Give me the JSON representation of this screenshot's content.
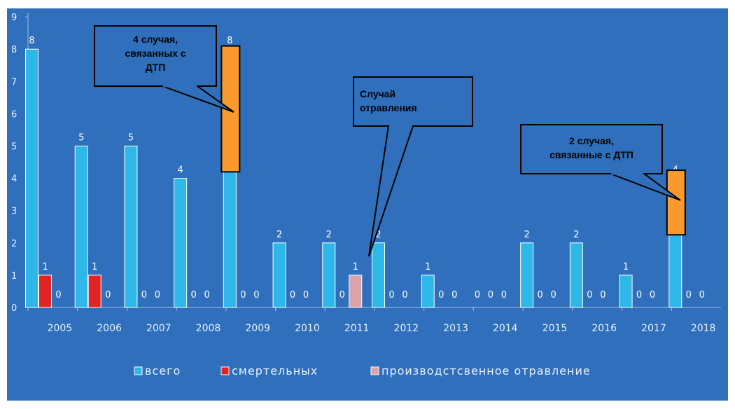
{
  "colors": {
    "background": "#2f6fbb",
    "total": "#2fb7e8",
    "fatal": "#e02424",
    "poisoning": "#d9a3ab",
    "highlight": "#f99a30",
    "axis": "#9fbfe6"
  },
  "chart_data": {
    "type": "bar",
    "title": "",
    "xlabel": "",
    "ylabel": "",
    "ylim": [
      0,
      9
    ],
    "yticks": [
      "0",
      "1",
      "2",
      "3",
      "4",
      "5",
      "6",
      "7",
      "8",
      "9"
    ],
    "categories": [
      "2005",
      "2006",
      "2007",
      "2008",
      "2009",
      "2010",
      "2011",
      "2012",
      "2013",
      "2014",
      "2015",
      "2016",
      "2017",
      "2018"
    ],
    "series": [
      {
        "name": "всего",
        "values": [
          8,
          5,
          5,
          4,
          8,
          2,
          2,
          2,
          1,
          0,
          2,
          2,
          1,
          4
        ],
        "labels": [
          "8",
          "5",
          "5",
          "4",
          "8",
          "2",
          "2",
          "2",
          "1",
          "0",
          "2",
          "2",
          "1",
          "4"
        ]
      },
      {
        "name": "смертельных",
        "values": [
          1,
          1,
          0,
          0,
          0,
          0,
          0,
          0,
          0,
          0,
          0,
          0,
          0,
          0
        ],
        "labels": [
          "1",
          "1",
          "0",
          "0",
          "0",
          "0",
          "0",
          "0",
          "0",
          "0",
          "0",
          "0",
          "0",
          "0"
        ]
      },
      {
        "name": "производственное отравление",
        "values": [
          0,
          0,
          0,
          0,
          0,
          0,
          1,
          0,
          0,
          0,
          0,
          0,
          0,
          0
        ],
        "labels": [
          "0",
          "0",
          "0",
          "0",
          "0",
          "0",
          "1",
          "0",
          "0",
          "0",
          "0",
          "0",
          "0",
          "0"
        ]
      }
    ],
    "highlights": [
      {
        "category": "2009",
        "from": 4.2,
        "to": 8.1
      },
      {
        "category": "2018",
        "from": 2.25,
        "to": 4.25
      }
    ],
    "legend": [
      "всего",
      "смертельных",
      "производстсвенное отравление"
    ],
    "annotations": [
      {
        "lines": [
          "4  случая,",
          "связанных с",
          "ДТП"
        ],
        "target": "2009"
      },
      {
        "lines": [
          "Случай",
          "отравления"
        ],
        "target": "2011"
      },
      {
        "lines": [
          "2  случая,",
          "связанные с ДТП"
        ],
        "target": "2018"
      }
    ]
  }
}
